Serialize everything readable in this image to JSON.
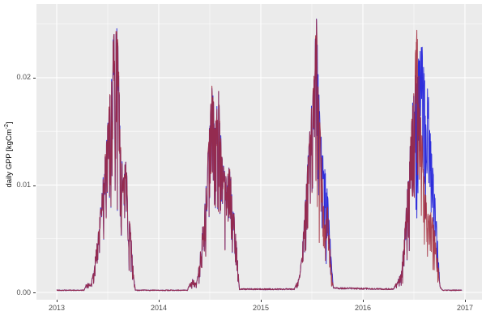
{
  "figure": {
    "y_axis": {
      "label_prefix": "daily GPP [kgCm",
      "label_sup": "-2",
      "label_suffix": "]",
      "tick_labels": [
        "0.02",
        "0.01",
        "0.00"
      ],
      "tick_values": [
        0.02,
        0.01,
        0.0
      ]
    },
    "x_axis": {
      "tick_labels": [
        "2013",
        "2014",
        "2015",
        "2016",
        "2017"
      ],
      "tick_values": [
        2013,
        2014,
        2015,
        2016,
        2017
      ]
    },
    "colors": {
      "panel_background": "#EBEBEB",
      "gridline": "#FFFFFF",
      "tick_text": "#4D4D4D",
      "tick_mark": "#333333",
      "series_blue": "#2E2EDC",
      "series_red": "#A32B3C"
    }
  },
  "chart_data": {
    "type": "line",
    "title": "",
    "xlabel": "",
    "ylabel": "daily GPP [kgCm^-2]",
    "x_unit": "calendar year, daily resolution",
    "legend": "none",
    "grid": "white major+minor gridlines on gray panel (ggplot style)",
    "xlim": [
      2012.8016,
      2017.1667
    ],
    "ylim": [
      -0.00068,
      0.02686
    ],
    "x_ticks": [
      2013,
      2014,
      2015,
      2016,
      2017
    ],
    "y_ticks": [
      0.0,
      0.01,
      0.02
    ],
    "x_minor": [
      2013.5,
      2014.5,
      2015.5,
      2016.5
    ],
    "y_minor": [
      0.005,
      0.015,
      0.025
    ],
    "x_start": 2013.0,
    "x_end": 2016.972,
    "diverge_windows": [
      [
        2015.55,
        2015.705
      ],
      [
        2016.515,
        2016.75
      ]
    ],
    "noise": {
      "seed_red": 42,
      "seed_blue": 1013,
      "down_amp": 0.5,
      "up_bias": 1.02,
      "dip_chance": 0.12,
      "dip_factor": 0.5,
      "overlap_jitter": 0.04,
      "baseline_level": 0.0002
    },
    "series": [
      {
        "name": "series-blue",
        "color": "#2E2EDC",
        "anchors": [
          [
            2013.0,
            0.0002
          ],
          [
            2013.27,
            0.0002
          ],
          [
            2013.3,
            0.0009
          ],
          [
            2013.33,
            0.0006
          ],
          [
            2013.36,
            0.0018
          ],
          [
            2013.4,
            0.005
          ],
          [
            2013.44,
            0.009
          ],
          [
            2013.48,
            0.013
          ],
          [
            2013.52,
            0.018
          ],
          [
            2013.555,
            0.0235
          ],
          [
            2013.575,
            0.0258
          ],
          [
            2013.6,
            0.023
          ],
          [
            2013.625,
            0.015
          ],
          [
            2013.65,
            0.01
          ],
          [
            2013.675,
            0.0122
          ],
          [
            2013.7,
            0.009
          ],
          [
            2013.73,
            0.005
          ],
          [
            2013.755,
            0.0015
          ],
          [
            2013.77,
            0.0002
          ],
          [
            2014.28,
            0.0002
          ],
          [
            2014.33,
            0.0012
          ],
          [
            2014.37,
            0.0008
          ],
          [
            2014.4,
            0.003
          ],
          [
            2014.45,
            0.008
          ],
          [
            2014.49,
            0.014
          ],
          [
            2014.525,
            0.0202
          ],
          [
            2014.55,
            0.015
          ],
          [
            2014.585,
            0.0188
          ],
          [
            2014.62,
            0.0125
          ],
          [
            2014.66,
            0.0105
          ],
          [
            2014.695,
            0.0118
          ],
          [
            2014.73,
            0.008
          ],
          [
            2014.765,
            0.004
          ],
          [
            2014.79,
            0.0003
          ],
          [
            2015.33,
            0.0003
          ],
          [
            2015.37,
            0.0012
          ],
          [
            2015.4,
            0.003
          ],
          [
            2015.44,
            0.009
          ],
          [
            2015.48,
            0.015
          ],
          [
            2015.515,
            0.019
          ],
          [
            2015.545,
            0.0252
          ],
          [
            2015.565,
            0.019
          ],
          [
            2015.6,
            0.013
          ],
          [
            2015.625,
            0.0115
          ],
          [
            2015.655,
            0.009
          ],
          [
            2015.685,
            0.004
          ],
          [
            2015.71,
            0.0004
          ],
          [
            2016.3,
            0.0003
          ],
          [
            2016.34,
            0.001
          ],
          [
            2016.38,
            0.002
          ],
          [
            2016.42,
            0.007
          ],
          [
            2016.46,
            0.013
          ],
          [
            2016.5,
            0.0195
          ],
          [
            2016.53,
            0.019
          ],
          [
            2016.555,
            0.0228
          ],
          [
            2016.58,
            0.0225
          ],
          [
            2016.61,
            0.019
          ],
          [
            2016.64,
            0.0185
          ],
          [
            2016.67,
            0.013
          ],
          [
            2016.7,
            0.01
          ],
          [
            2016.73,
            0.005
          ],
          [
            2016.755,
            0.0006
          ],
          [
            2016.78,
            0.0002
          ],
          [
            2016.972,
            0.0002
          ]
        ]
      },
      {
        "name": "series-red",
        "color": "#A32B3C",
        "anchors": [
          [
            2013.0,
            0.0002
          ],
          [
            2013.27,
            0.0002
          ],
          [
            2013.3,
            0.0009
          ],
          [
            2013.33,
            0.0006
          ],
          [
            2013.36,
            0.0018
          ],
          [
            2013.4,
            0.005
          ],
          [
            2013.44,
            0.009
          ],
          [
            2013.48,
            0.013
          ],
          [
            2013.52,
            0.018
          ],
          [
            2013.555,
            0.0235
          ],
          [
            2013.575,
            0.0258
          ],
          [
            2013.6,
            0.023
          ],
          [
            2013.625,
            0.015
          ],
          [
            2013.65,
            0.01
          ],
          [
            2013.675,
            0.0122
          ],
          [
            2013.7,
            0.009
          ],
          [
            2013.73,
            0.005
          ],
          [
            2013.755,
            0.0015
          ],
          [
            2013.77,
            0.0002
          ],
          [
            2014.28,
            0.0002
          ],
          [
            2014.33,
            0.0012
          ],
          [
            2014.37,
            0.0008
          ],
          [
            2014.4,
            0.003
          ],
          [
            2014.45,
            0.008
          ],
          [
            2014.49,
            0.014
          ],
          [
            2014.525,
            0.0202
          ],
          [
            2014.55,
            0.015
          ],
          [
            2014.585,
            0.0188
          ],
          [
            2014.62,
            0.0125
          ],
          [
            2014.66,
            0.0105
          ],
          [
            2014.695,
            0.0118
          ],
          [
            2014.73,
            0.008
          ],
          [
            2014.765,
            0.004
          ],
          [
            2014.79,
            0.0003
          ],
          [
            2015.33,
            0.0003
          ],
          [
            2015.37,
            0.0012
          ],
          [
            2015.4,
            0.003
          ],
          [
            2015.44,
            0.009
          ],
          [
            2015.48,
            0.015
          ],
          [
            2015.515,
            0.019
          ],
          [
            2015.545,
            0.0252
          ],
          [
            2015.565,
            0.018
          ],
          [
            2015.6,
            0.0115
          ],
          [
            2015.625,
            0.006
          ],
          [
            2015.655,
            0.008
          ],
          [
            2015.685,
            0.003
          ],
          [
            2015.71,
            0.0004
          ],
          [
            2016.3,
            0.0003
          ],
          [
            2016.34,
            0.001
          ],
          [
            2016.38,
            0.002
          ],
          [
            2016.42,
            0.007
          ],
          [
            2016.46,
            0.013
          ],
          [
            2016.5,
            0.0195
          ],
          [
            2016.53,
            0.0242
          ],
          [
            2016.555,
            0.018
          ],
          [
            2016.58,
            0.014
          ],
          [
            2016.61,
            0.01
          ],
          [
            2016.64,
            0.007
          ],
          [
            2016.67,
            0.0075
          ],
          [
            2016.7,
            0.006
          ],
          [
            2016.73,
            0.0035
          ],
          [
            2016.755,
            0.0005
          ],
          [
            2016.78,
            0.0002
          ],
          [
            2016.972,
            0.0002
          ]
        ]
      }
    ]
  }
}
